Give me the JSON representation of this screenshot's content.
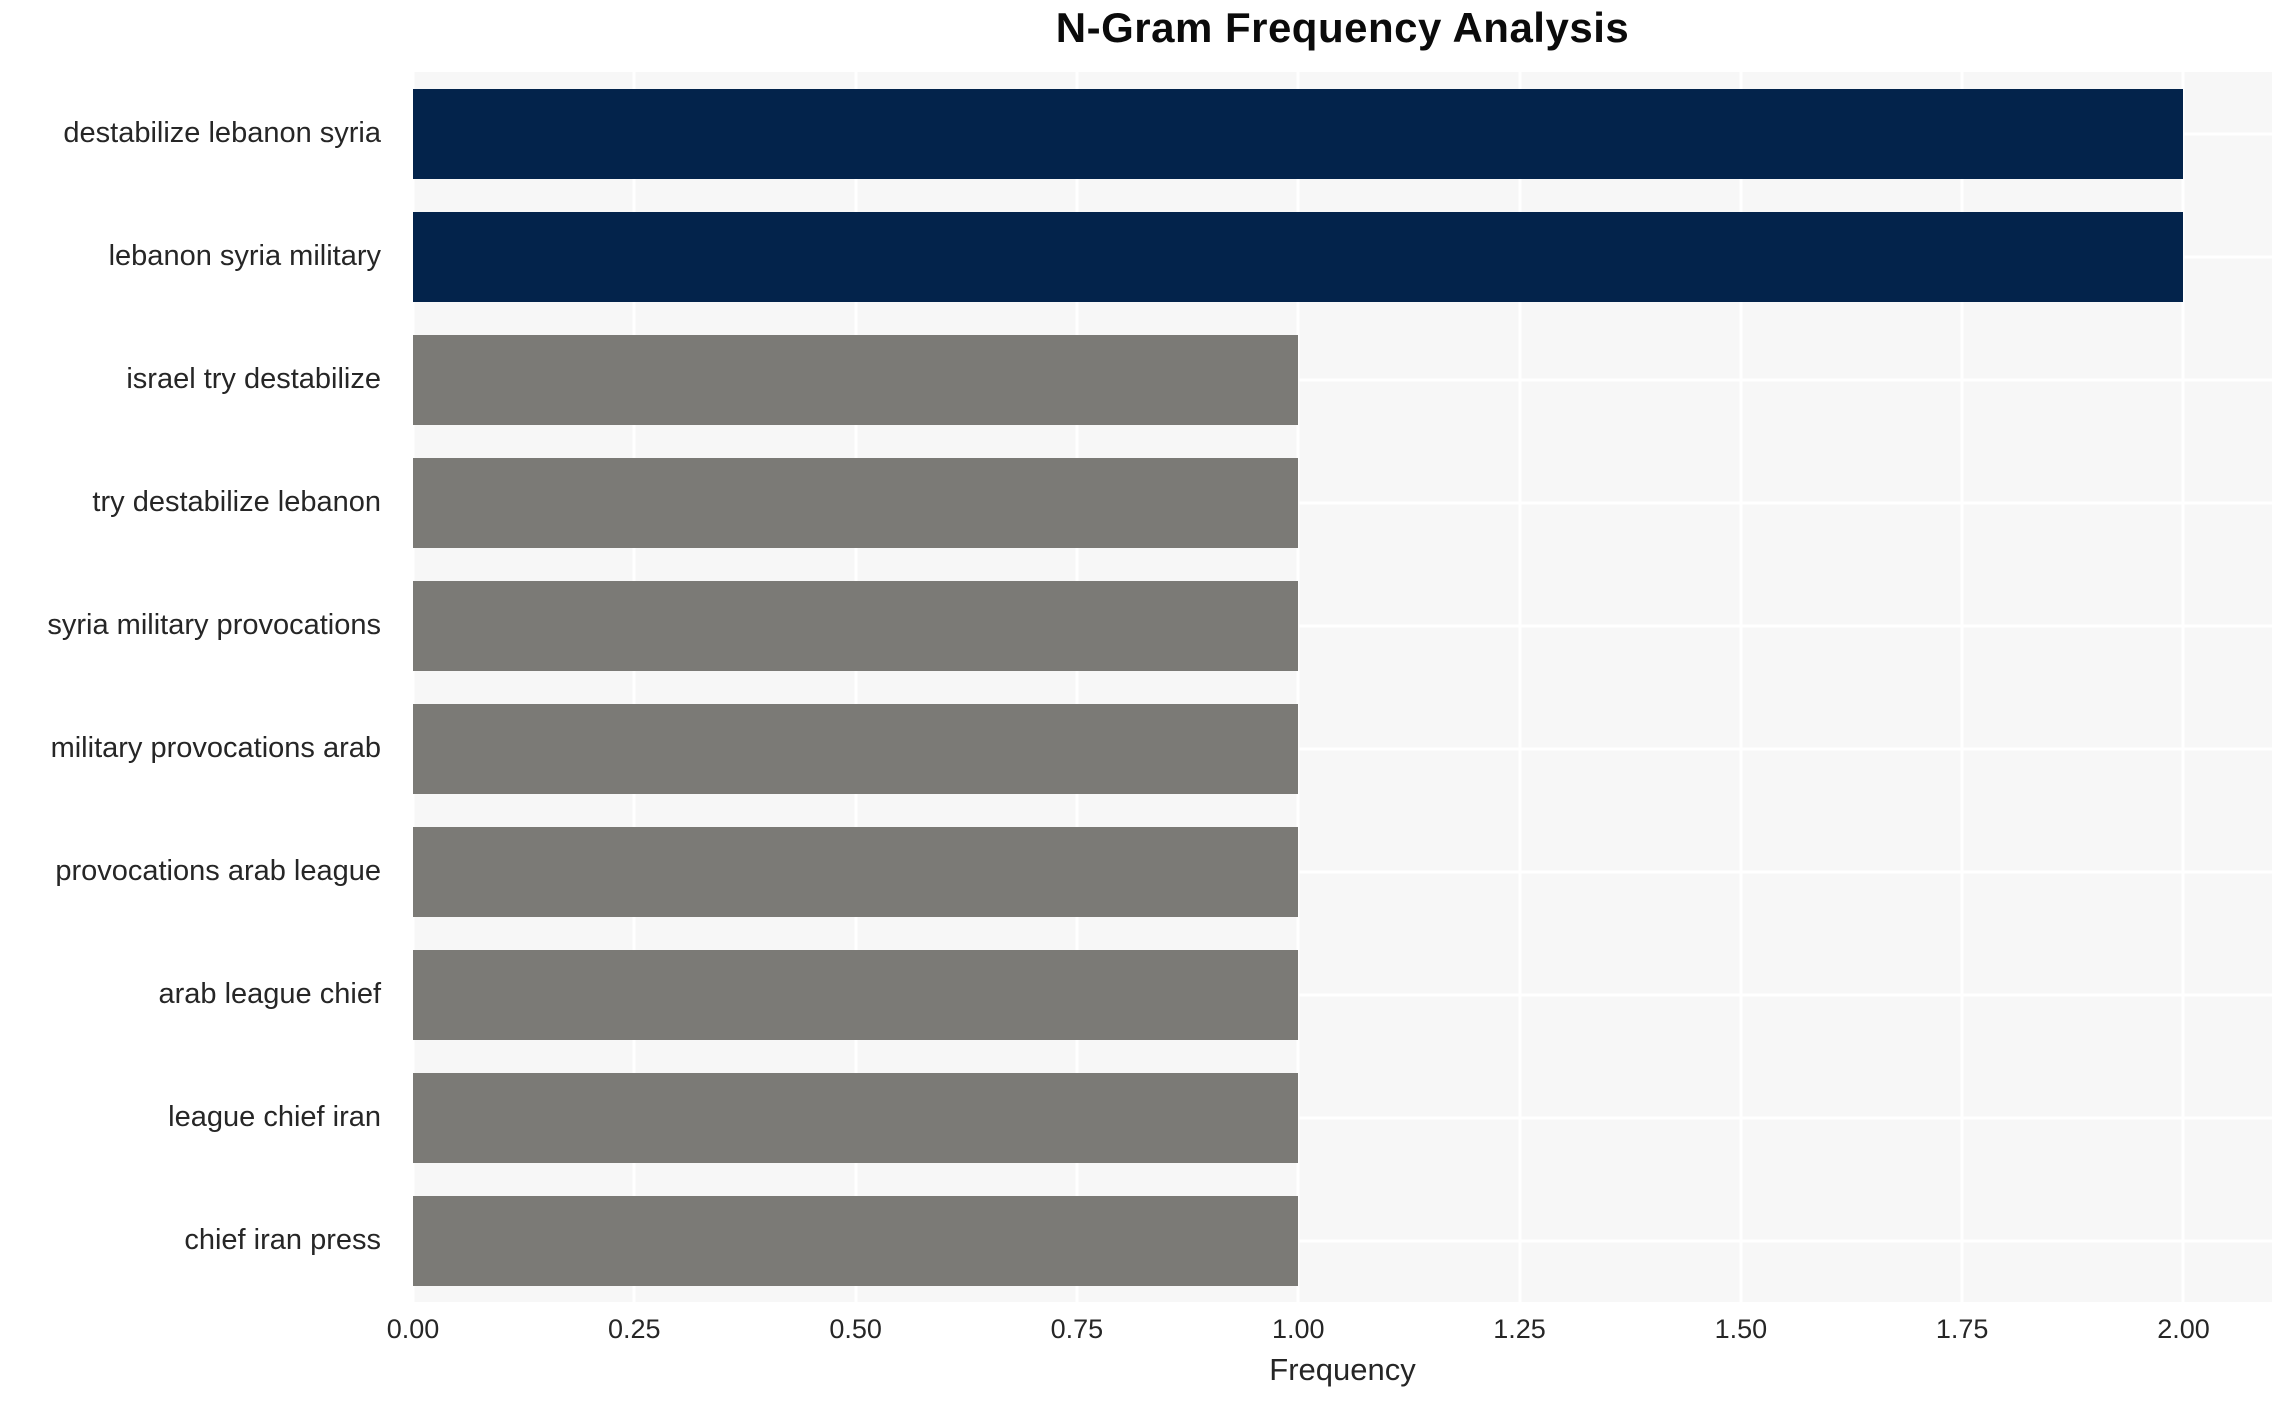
{
  "chart_data": {
    "type": "bar",
    "orientation": "horizontal",
    "title": "N-Gram Frequency Analysis",
    "xlabel": "Frequency",
    "ylabel": "",
    "categories": [
      "destabilize lebanon syria",
      "lebanon syria military",
      "israel try destabilize",
      "try destabilize lebanon",
      "syria military provocations",
      "military provocations arab",
      "provocations arab league",
      "arab league chief",
      "league chief iran",
      "chief iran press"
    ],
    "values": [
      2,
      2,
      1,
      1,
      1,
      1,
      1,
      1,
      1,
      1
    ],
    "bar_colors": [
      "#03234b",
      "#03234b",
      "#7b7a76",
      "#7b7a76",
      "#7b7a76",
      "#7b7a76",
      "#7b7a76",
      "#7b7a76",
      "#7b7a76",
      "#7b7a76"
    ],
    "xlim": [
      0,
      2.1
    ],
    "xticks": [
      "0.00",
      "0.25",
      "0.50",
      "0.75",
      "1.00",
      "1.25",
      "1.50",
      "1.75",
      "2.00"
    ],
    "xtick_values": [
      0,
      0.25,
      0.5,
      0.75,
      1.0,
      1.25,
      1.5,
      1.75,
      2.0
    ],
    "grid": true,
    "legend": "none",
    "plot_background": "#f7f7f7",
    "figure_background": "#ffffff",
    "grid_color": "#ffffff",
    "colors": {
      "high_frequency_bar": "#03234b",
      "low_frequency_bar": "#7b7a76"
    }
  }
}
